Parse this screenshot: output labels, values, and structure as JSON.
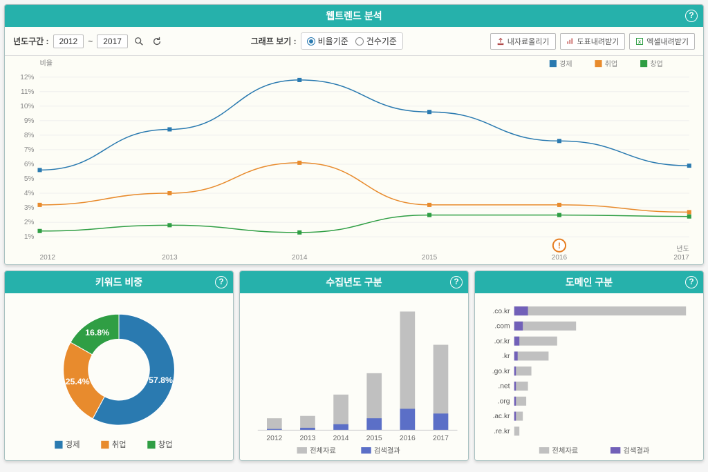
{
  "main": {
    "title": "웹트렌드 분석",
    "toolbar": {
      "range_label": "년도구간 :",
      "year_from": "2012",
      "year_to": "2017",
      "tilde": "~",
      "view_label": "그래프 보기 :",
      "radio_ratio": "비율기준",
      "radio_count": "건수기준",
      "btn_upload": "내자료올리기",
      "btn_chart": "도표내려받기",
      "btn_excel": "엑셀내려받기"
    },
    "line_chart": {
      "type": "line",
      "y_label": "비율",
      "x_label": "년도",
      "x_categories": [
        "2012",
        "2013",
        "2014",
        "2015",
        "2016",
        "2017"
      ],
      "y_ticks": [
        1,
        2,
        3,
        4,
        5,
        6,
        7,
        8,
        9,
        10,
        11,
        12
      ],
      "y_tick_suffix": "%",
      "ylim": [
        0.5,
        12.5
      ],
      "series": [
        {
          "name": "경제",
          "color": "#2a7ab0",
          "marker": "square",
          "values": [
            5.6,
            8.4,
            11.8,
            9.6,
            7.6,
            5.9
          ]
        },
        {
          "name": "취업",
          "color": "#e88b2d",
          "marker": "square",
          "values": [
            3.2,
            4.0,
            6.1,
            3.2,
            3.2,
            2.7
          ]
        },
        {
          "name": "창업",
          "color": "#2f9e44",
          "marker": "square",
          "values": [
            1.4,
            1.8,
            1.3,
            2.5,
            2.5,
            2.4
          ]
        }
      ],
      "background": "#fdfdf6",
      "grid_color": "#eeeeee",
      "alert_x": "2016"
    }
  },
  "keyword": {
    "title": "키워드 비중",
    "donut": {
      "type": "pie",
      "inner_radius_ratio": 0.55,
      "slices": [
        {
          "label": "경제",
          "value": 57.8,
          "color": "#2a7ab0"
        },
        {
          "label": "취업",
          "value": 25.4,
          "color": "#e88b2d"
        },
        {
          "label": "창업",
          "value": 16.8,
          "color": "#2f9e44"
        }
      ],
      "label_suffix": "%"
    }
  },
  "yearbar": {
    "title": "수집년도 구분",
    "chart": {
      "type": "stacked-bar",
      "categories": [
        "2012",
        "2013",
        "2014",
        "2015",
        "2016",
        "2017"
      ],
      "series": [
        {
          "name": "전체자료",
          "color": "#c0c0c0",
          "values": [
            10,
            12,
            30,
            48,
            100,
            72
          ]
        },
        {
          "name": "검색결과",
          "color": "#5b6fc7",
          "values": [
            1,
            2,
            5,
            10,
            18,
            14
          ]
        }
      ],
      "ylim": [
        0,
        105
      ],
      "bar_width": 0.45,
      "background": "#fdfdf8"
    }
  },
  "domain": {
    "title": "도메인 구분",
    "chart": {
      "type": "horizontal-stacked-bar",
      "categories": [
        ".co.kr",
        ".com",
        ".or.kr",
        ".kr",
        ".go.kr",
        ".net",
        ".org",
        ".ac.kr",
        ".re.kr"
      ],
      "series": [
        {
          "name": "전체자료",
          "color": "#c0c0c0",
          "values": [
            100,
            36,
            25,
            20,
            10,
            8,
            7,
            5,
            3
          ]
        },
        {
          "name": "검색결과",
          "color": "#7160b8",
          "values": [
            8,
            5,
            3,
            2,
            1,
            1,
            1,
            1,
            0
          ]
        }
      ],
      "xlim": [
        0,
        105
      ],
      "bar_height": 0.6,
      "background": "#fdfdf8"
    }
  }
}
